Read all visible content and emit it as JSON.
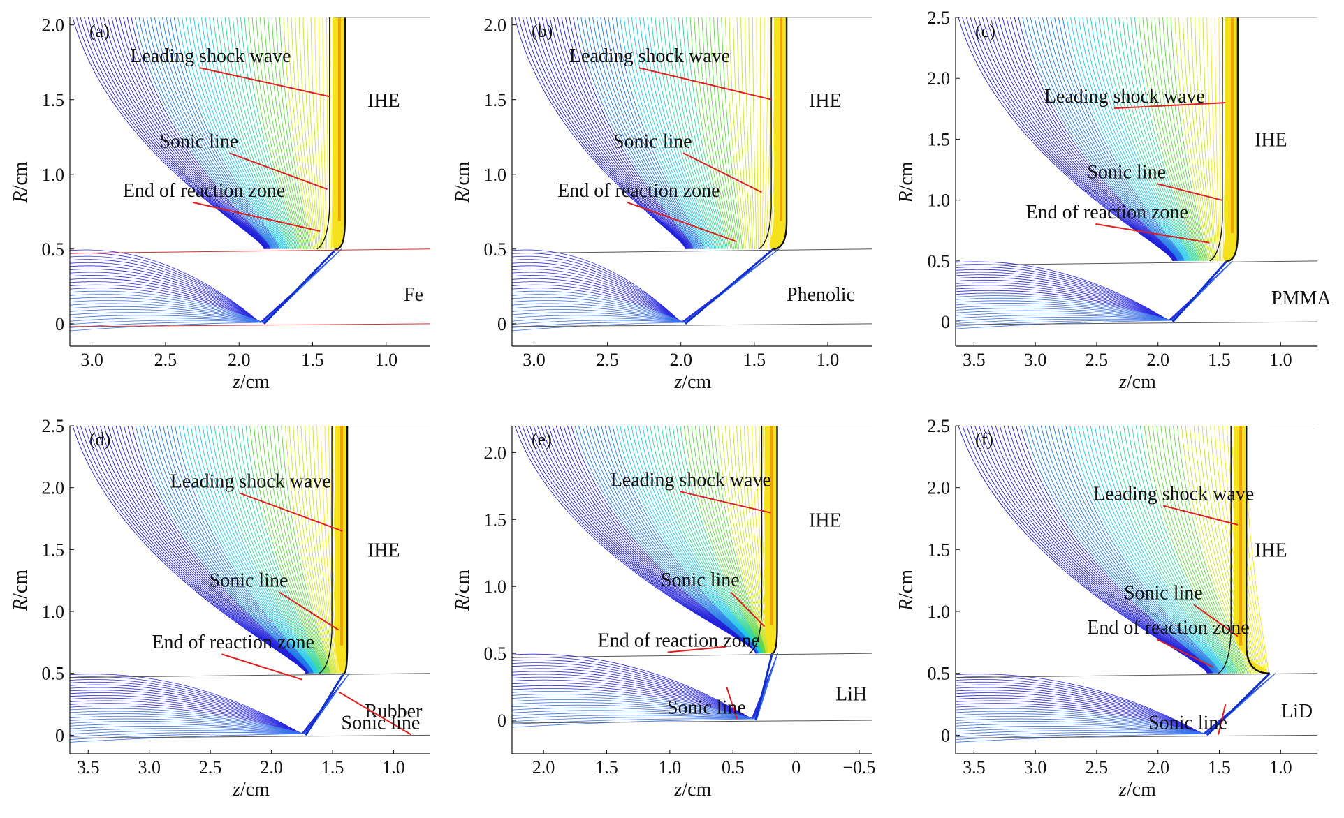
{
  "figure": {
    "panels": [
      {
        "label": "(a)",
        "material": "Fe",
        "ihe_label": "IHE",
        "xlabel_italic": "z",
        "xlabel_unit": "/cm",
        "ylabel_italic": "R",
        "ylabel_unit": "/cm",
        "xlim": [
          3.15,
          0.7
        ],
        "ylim": [
          -0.15,
          2.05
        ],
        "xticks": [
          "3.0",
          "2.5",
          "2.0",
          "1.5",
          "1.0"
        ],
        "yticks": [
          "2.0",
          "1.5",
          "1.0",
          "0.5",
          "0"
        ],
        "annotations": [
          "Leading shock wave",
          "Sonic line",
          "End of reaction zone"
        ]
      },
      {
        "label": "(b)",
        "material": "Phenolic",
        "ihe_label": "IHE",
        "xlabel_italic": "z",
        "xlabel_unit": "/cm",
        "ylabel_italic": "R",
        "ylabel_unit": "/cm",
        "xlim": [
          3.15,
          0.7
        ],
        "ylim": [
          -0.15,
          2.05
        ],
        "xticks": [
          "3.0",
          "2.5",
          "2.0",
          "1.5",
          "1.0"
        ],
        "yticks": [
          "2.0",
          "1.5",
          "1.0",
          "0.5",
          "0"
        ],
        "annotations": [
          "Leading shock wave",
          "Sonic line",
          "End of reaction zone"
        ]
      },
      {
        "label": "(c)",
        "material": "PMMA",
        "ihe_label": "IHE",
        "xlabel_italic": "z",
        "xlabel_unit": "/cm",
        "ylabel_italic": "R",
        "ylabel_unit": "/cm",
        "xlim": [
          3.65,
          0.7
        ],
        "ylim": [
          -0.2,
          2.5
        ],
        "xticks": [
          "3.5",
          "3.0",
          "2.5",
          "2.0",
          "1.5",
          "1.0"
        ],
        "yticks": [
          "2.5",
          "2.0",
          "1.5",
          "1.0",
          "0.5",
          "0"
        ],
        "annotations": [
          "Leading shock wave",
          "Sonic line",
          "End of reaction zone"
        ]
      },
      {
        "label": "(d)",
        "material": "Rubber",
        "ihe_label": "IHE",
        "xlabel_italic": "z",
        "xlabel_unit": "/cm",
        "ylabel_italic": "R",
        "ylabel_unit": "/cm",
        "xlim": [
          3.65,
          0.7
        ],
        "ylim": [
          -0.15,
          2.5
        ],
        "xticks": [
          "3.5",
          "3.0",
          "2.5",
          "2.0",
          "1.5",
          "1.0"
        ],
        "yticks": [
          "2.5",
          "2.0",
          "1.5",
          "1.0",
          "0.5",
          "0"
        ],
        "annotations": [
          "Leading shock wave",
          "Sonic line",
          "End of reaction zone",
          "Sonic line"
        ]
      },
      {
        "label": "(e)",
        "material": "LiH",
        "ihe_label": "IHE",
        "xlabel_italic": "z",
        "xlabel_unit": "/cm",
        "ylabel_italic": "R",
        "ylabel_unit": "/cm",
        "xlim": [
          2.25,
          -0.6
        ],
        "ylim": [
          -0.25,
          2.2
        ],
        "xticks": [
          "2.0",
          "1.5",
          "1.0",
          "0.5",
          "0",
          "−0.5"
        ],
        "yticks": [
          "2.0",
          "1.5",
          "1.0",
          "0.5",
          "0"
        ],
        "annotations": [
          "Leading shock wave",
          "Sonic line",
          "End of reaction zone",
          "Sonic line"
        ]
      },
      {
        "label": "(f)",
        "material": "LiD",
        "ihe_label": "IHE",
        "xlabel_italic": "z",
        "xlabel_unit": "/cm",
        "ylabel_italic": "R",
        "ylabel_unit": "/cm",
        "xlim": [
          3.65,
          0.7
        ],
        "ylim": [
          -0.15,
          2.5
        ],
        "xticks": [
          "3.5",
          "3.0",
          "2.5",
          "2.0",
          "1.5",
          "1.0"
        ],
        "yticks": [
          "2.5",
          "2.0",
          "1.5",
          "1.0",
          "0.5",
          "0"
        ],
        "annotations": [
          "Leading shock wave",
          "Sonic line",
          "End of reaction zone",
          "Sonic line"
        ]
      }
    ]
  },
  "chart_data": [
    {
      "type": "contour",
      "panel": "(a)",
      "material": "Fe",
      "xlabel": "z/cm",
      "ylabel": "R/cm",
      "xlim": [
        3.15,
        0.7
      ],
      "ylim": [
        -0.15,
        2.05
      ],
      "leading_shock_z_at_top": 1.28,
      "interface_R": 0.5,
      "grid": false,
      "colormap": [
        "#1a1adc",
        "#22c8e6",
        "#3cd264",
        "#f5e61e",
        "#f0a000"
      ]
    },
    {
      "type": "contour",
      "panel": "(b)",
      "material": "Phenolic",
      "xlabel": "z/cm",
      "ylabel": "R/cm",
      "xlim": [
        3.15,
        0.7
      ],
      "ylim": [
        -0.15,
        2.05
      ],
      "leading_shock_z_at_top": 1.28,
      "interface_R": 0.5,
      "grid": false
    },
    {
      "type": "contour",
      "panel": "(c)",
      "material": "PMMA",
      "xlabel": "z/cm",
      "ylabel": "R/cm",
      "xlim": [
        3.65,
        0.7
      ],
      "ylim": [
        -0.2,
        2.5
      ],
      "leading_shock_z_at_top": 1.35,
      "interface_R": 0.5,
      "grid": false
    },
    {
      "type": "contour",
      "panel": "(d)",
      "material": "Rubber",
      "xlabel": "z/cm",
      "ylabel": "R/cm",
      "xlim": [
        3.65,
        0.7
      ],
      "ylim": [
        -0.15,
        2.5
      ],
      "leading_shock_z_at_top": 1.38,
      "interface_R": 0.5,
      "grid": false
    },
    {
      "type": "contour",
      "panel": "(e)",
      "material": "LiH",
      "xlabel": "z/cm",
      "ylabel": "R/cm",
      "xlim": [
        2.25,
        -0.6
      ],
      "ylim": [
        -0.25,
        2.2
      ],
      "leading_shock_z_at_top": 0.15,
      "interface_R": 0.5,
      "grid": false
    },
    {
      "type": "contour",
      "panel": "(f)",
      "material": "LiD",
      "xlabel": "z/cm",
      "ylabel": "R/cm",
      "xlim": [
        3.65,
        0.7
      ],
      "ylim": [
        -0.15,
        2.5
      ],
      "leading_shock_z_at_top": 1.28,
      "interface_R": 0.5,
      "grid": false
    }
  ]
}
